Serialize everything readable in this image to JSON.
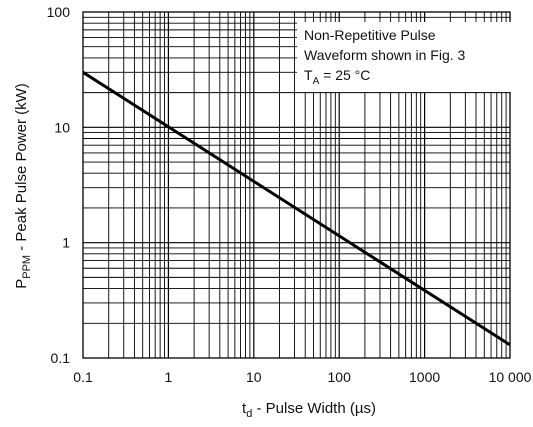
{
  "chart_data": {
    "type": "line",
    "x_scale": "log",
    "y_scale": "log",
    "xlim": [
      0.1,
      10000
    ],
    "ylim": [
      0.1,
      100
    ],
    "grid": true,
    "x_ticks": [
      "0.1",
      "1",
      "10",
      "100",
      "1000",
      "10 000"
    ],
    "y_ticks": [
      "0.1",
      "1",
      "10",
      "100"
    ],
    "xlabel": {
      "main": "t",
      "sub": "d",
      "rest": " - Pulse Width (µs)"
    },
    "ylabel": {
      "main": "P",
      "sub": "PPM",
      "rest": " - Peak Pulse Power (kW)"
    },
    "annotation": {
      "line1": "Non-Repetitive Pulse",
      "line2": "Waveform shown in Fig. 3",
      "line3_main": "T",
      "line3_sub": "A",
      "line3_rest": " = 25 °C"
    },
    "series": [
      {
        "x": [
          0.1,
          10000
        ],
        "y": [
          30,
          0.13
        ]
      }
    ]
  }
}
